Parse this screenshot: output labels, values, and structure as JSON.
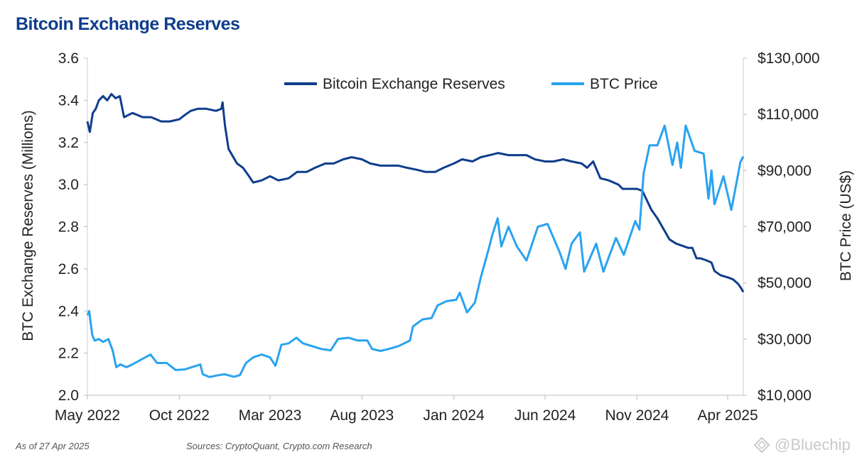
{
  "chart_data": {
    "type": "line",
    "title": "Bitcoin Exchange Reserves",
    "y_left": {
      "label": "BTC Exchange Reserves (Millions)",
      "lim": [
        2.0,
        3.6
      ],
      "ticks": [
        "2.0",
        "2.2",
        "2.4",
        "2.6",
        "2.8",
        "3.0",
        "3.2",
        "3.4",
        "3.6"
      ]
    },
    "y_right": {
      "label": "BTC Price (US$)",
      "lim": [
        10000,
        130000
      ],
      "ticks": [
        "$10,000",
        "$30,000",
        "$50,000",
        "$70,000",
        "$90,000",
        "$110,000",
        "$130,000"
      ]
    },
    "x_ticks": [
      "May 2022",
      "Oct 2022",
      "Mar 2023",
      "Aug 2023",
      "Jan 2024",
      "Jun 2024",
      "Nov 2024",
      "Apr 2025"
    ],
    "x_range": [
      "2022-05-01",
      "2025-04-27"
    ],
    "legend_position": "top-center",
    "grid": false,
    "colors": {
      "reserves": "#0f3d8c",
      "price": "#29a3f0"
    },
    "series": [
      {
        "name": "Bitcoin Exchange Reserves",
        "axis": "left",
        "points": [
          [
            "2022-05-01",
            3.3
          ],
          [
            "2022-05-05",
            3.25
          ],
          [
            "2022-05-10",
            3.34
          ],
          [
            "2022-05-15",
            3.36
          ],
          [
            "2022-05-20",
            3.4
          ],
          [
            "2022-05-27",
            3.42
          ],
          [
            "2022-06-03",
            3.4
          ],
          [
            "2022-06-10",
            3.43
          ],
          [
            "2022-06-17",
            3.41
          ],
          [
            "2022-06-24",
            3.42
          ],
          [
            "2022-07-01",
            3.32
          ],
          [
            "2022-07-15",
            3.34
          ],
          [
            "2022-08-01",
            3.32
          ],
          [
            "2022-08-15",
            3.32
          ],
          [
            "2022-09-01",
            3.3
          ],
          [
            "2022-09-15",
            3.3
          ],
          [
            "2022-10-01",
            3.31
          ],
          [
            "2022-10-10",
            3.33
          ],
          [
            "2022-10-20",
            3.35
          ],
          [
            "2022-11-01",
            3.36
          ],
          [
            "2022-11-15",
            3.36
          ],
          [
            "2022-12-01",
            3.35
          ],
          [
            "2022-12-10",
            3.36
          ],
          [
            "2022-12-12",
            3.39
          ],
          [
            "2022-12-16",
            3.28
          ],
          [
            "2022-12-22",
            3.17
          ],
          [
            "2022-12-28",
            3.14
          ],
          [
            "2023-01-05",
            3.1
          ],
          [
            "2023-01-15",
            3.08
          ],
          [
            "2023-01-25",
            3.04
          ],
          [
            "2023-02-01",
            3.01
          ],
          [
            "2023-02-15",
            3.02
          ],
          [
            "2023-03-01",
            3.04
          ],
          [
            "2023-03-15",
            3.02
          ],
          [
            "2023-04-01",
            3.03
          ],
          [
            "2023-04-15",
            3.06
          ],
          [
            "2023-05-01",
            3.06
          ],
          [
            "2023-05-15",
            3.08
          ],
          [
            "2023-06-01",
            3.1
          ],
          [
            "2023-06-15",
            3.1
          ],
          [
            "2023-07-01",
            3.12
          ],
          [
            "2023-07-15",
            3.13
          ],
          [
            "2023-08-01",
            3.12
          ],
          [
            "2023-08-15",
            3.1
          ],
          [
            "2023-09-01",
            3.09
          ],
          [
            "2023-09-15",
            3.09
          ],
          [
            "2023-10-01",
            3.09
          ],
          [
            "2023-10-15",
            3.08
          ],
          [
            "2023-11-01",
            3.07
          ],
          [
            "2023-11-15",
            3.06
          ],
          [
            "2023-12-01",
            3.06
          ],
          [
            "2023-12-15",
            3.08
          ],
          [
            "2024-01-01",
            3.1
          ],
          [
            "2024-01-15",
            3.12
          ],
          [
            "2024-02-01",
            3.11
          ],
          [
            "2024-02-15",
            3.13
          ],
          [
            "2024-03-01",
            3.14
          ],
          [
            "2024-03-15",
            3.15
          ],
          [
            "2024-04-01",
            3.14
          ],
          [
            "2024-04-15",
            3.14
          ],
          [
            "2024-05-01",
            3.14
          ],
          [
            "2024-05-15",
            3.12
          ],
          [
            "2024-06-01",
            3.11
          ],
          [
            "2024-06-15",
            3.11
          ],
          [
            "2024-07-01",
            3.12
          ],
          [
            "2024-07-15",
            3.11
          ],
          [
            "2024-08-01",
            3.1
          ],
          [
            "2024-08-10",
            3.08
          ],
          [
            "2024-08-20",
            3.11
          ],
          [
            "2024-09-01",
            3.03
          ],
          [
            "2024-09-15",
            3.02
          ],
          [
            "2024-10-01",
            3.0
          ],
          [
            "2024-10-08",
            2.98
          ],
          [
            "2024-10-20",
            2.98
          ],
          [
            "2024-11-01",
            2.98
          ],
          [
            "2024-11-10",
            2.97
          ],
          [
            "2024-11-15",
            2.94
          ],
          [
            "2024-11-25",
            2.88
          ],
          [
            "2024-12-05",
            2.84
          ],
          [
            "2024-12-15",
            2.79
          ],
          [
            "2024-12-25",
            2.74
          ],
          [
            "2025-01-05",
            2.72
          ],
          [
            "2025-01-15",
            2.71
          ],
          [
            "2025-01-25",
            2.7
          ],
          [
            "2025-02-01",
            2.7
          ],
          [
            "2025-02-08",
            2.65
          ],
          [
            "2025-02-15",
            2.65
          ],
          [
            "2025-02-25",
            2.64
          ],
          [
            "2025-03-05",
            2.63
          ],
          [
            "2025-03-10",
            2.59
          ],
          [
            "2025-03-20",
            2.57
          ],
          [
            "2025-04-01",
            2.56
          ],
          [
            "2025-04-10",
            2.55
          ],
          [
            "2025-04-18",
            2.53
          ],
          [
            "2025-04-23",
            2.51
          ],
          [
            "2025-04-27",
            2.49
          ]
        ]
      },
      {
        "name": "BTC Price",
        "axis": "right",
        "points": [
          [
            "2022-05-01",
            38500
          ],
          [
            "2022-05-04",
            40000
          ],
          [
            "2022-05-09",
            31500
          ],
          [
            "2022-05-13",
            29500
          ],
          [
            "2022-05-20",
            30000
          ],
          [
            "2022-05-27",
            29000
          ],
          [
            "2022-06-05",
            30000
          ],
          [
            "2022-06-12",
            26000
          ],
          [
            "2022-06-18",
            20000
          ],
          [
            "2022-06-25",
            21000
          ],
          [
            "2022-07-05",
            20000
          ],
          [
            "2022-07-15",
            21000
          ],
          [
            "2022-08-01",
            23000
          ],
          [
            "2022-08-14",
            24500
          ],
          [
            "2022-08-25",
            21500
          ],
          [
            "2022-09-10",
            21500
          ],
          [
            "2022-09-25",
            19000
          ],
          [
            "2022-10-10",
            19200
          ],
          [
            "2022-10-25",
            20200
          ],
          [
            "2022-11-05",
            21000
          ],
          [
            "2022-11-09",
            17500
          ],
          [
            "2022-11-20",
            16500
          ],
          [
            "2022-12-01",
            17000
          ],
          [
            "2022-12-15",
            17500
          ],
          [
            "2022-12-31",
            16600
          ],
          [
            "2023-01-10",
            17200
          ],
          [
            "2023-01-20",
            21500
          ],
          [
            "2023-02-01",
            23500
          ],
          [
            "2023-02-15",
            24500
          ],
          [
            "2023-03-01",
            23500
          ],
          [
            "2023-03-10",
            20500
          ],
          [
            "2023-03-20",
            28000
          ],
          [
            "2023-04-01",
            28500
          ],
          [
            "2023-04-14",
            30500
          ],
          [
            "2023-04-25",
            28500
          ],
          [
            "2023-05-10",
            27500
          ],
          [
            "2023-05-25",
            26500
          ],
          [
            "2023-06-10",
            26000
          ],
          [
            "2023-06-22",
            30000
          ],
          [
            "2023-07-10",
            30500
          ],
          [
            "2023-07-25",
            29500
          ],
          [
            "2023-08-10",
            29500
          ],
          [
            "2023-08-18",
            26500
          ],
          [
            "2023-09-01",
            25800
          ],
          [
            "2023-09-15",
            26500
          ],
          [
            "2023-10-01",
            27500
          ],
          [
            "2023-10-20",
            29500
          ],
          [
            "2023-10-25",
            34500
          ],
          [
            "2023-11-10",
            37000
          ],
          [
            "2023-11-25",
            37500
          ],
          [
            "2023-12-05",
            42000
          ],
          [
            "2023-12-20",
            43500
          ],
          [
            "2024-01-05",
            44000
          ],
          [
            "2024-01-11",
            46500
          ],
          [
            "2024-01-23",
            39500
          ],
          [
            "2024-02-05",
            43000
          ],
          [
            "2024-02-15",
            52000
          ],
          [
            "2024-02-28",
            62000
          ],
          [
            "2024-03-05",
            67000
          ],
          [
            "2024-03-14",
            73000
          ],
          [
            "2024-03-20",
            63000
          ],
          [
            "2024-04-01",
            70000
          ],
          [
            "2024-04-15",
            63000
          ],
          [
            "2024-05-01",
            58000
          ],
          [
            "2024-05-20",
            70000
          ],
          [
            "2024-06-05",
            71000
          ],
          [
            "2024-06-25",
            61000
          ],
          [
            "2024-07-05",
            55000
          ],
          [
            "2024-07-15",
            64000
          ],
          [
            "2024-07-29",
            68000
          ],
          [
            "2024-08-05",
            54000
          ],
          [
            "2024-08-25",
            64000
          ],
          [
            "2024-09-06",
            54000
          ],
          [
            "2024-09-27",
            66000
          ],
          [
            "2024-10-10",
            60000
          ],
          [
            "2024-10-29",
            72000
          ],
          [
            "2024-11-05",
            69000
          ],
          [
            "2024-11-12",
            89000
          ],
          [
            "2024-11-22",
            99000
          ],
          [
            "2024-12-05",
            99000
          ],
          [
            "2024-12-17",
            106000
          ],
          [
            "2024-12-30",
            92000
          ],
          [
            "2025-01-07",
            100000
          ],
          [
            "2025-01-13",
            91000
          ],
          [
            "2025-01-21",
            106000
          ],
          [
            "2025-02-05",
            97000
          ],
          [
            "2025-02-20",
            96000
          ],
          [
            "2025-02-28",
            80000
          ],
          [
            "2025-03-05",
            90000
          ],
          [
            "2025-03-10",
            78000
          ],
          [
            "2025-03-25",
            88000
          ],
          [
            "2025-04-07",
            76000
          ],
          [
            "2025-04-15",
            85000
          ],
          [
            "2025-04-22",
            93000
          ],
          [
            "2025-04-27",
            95000
          ]
        ]
      }
    ]
  },
  "footer": {
    "as_of": "As of 27 Apr 2025",
    "sources": "Sources: CryptoQuant, Crypto.com Research",
    "watermark": "@Bluechip"
  }
}
